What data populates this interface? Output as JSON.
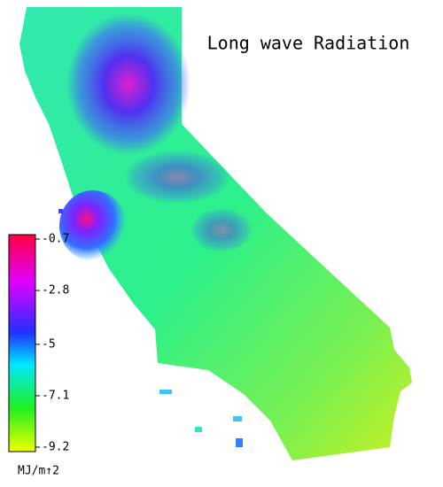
{
  "title": "Long wave Radiation",
  "legend": {
    "ticks": [
      -0.7,
      -2.8,
      -5.0,
      -7.1,
      -9.2
    ],
    "unit": "MJ/m↑2"
  }
}
